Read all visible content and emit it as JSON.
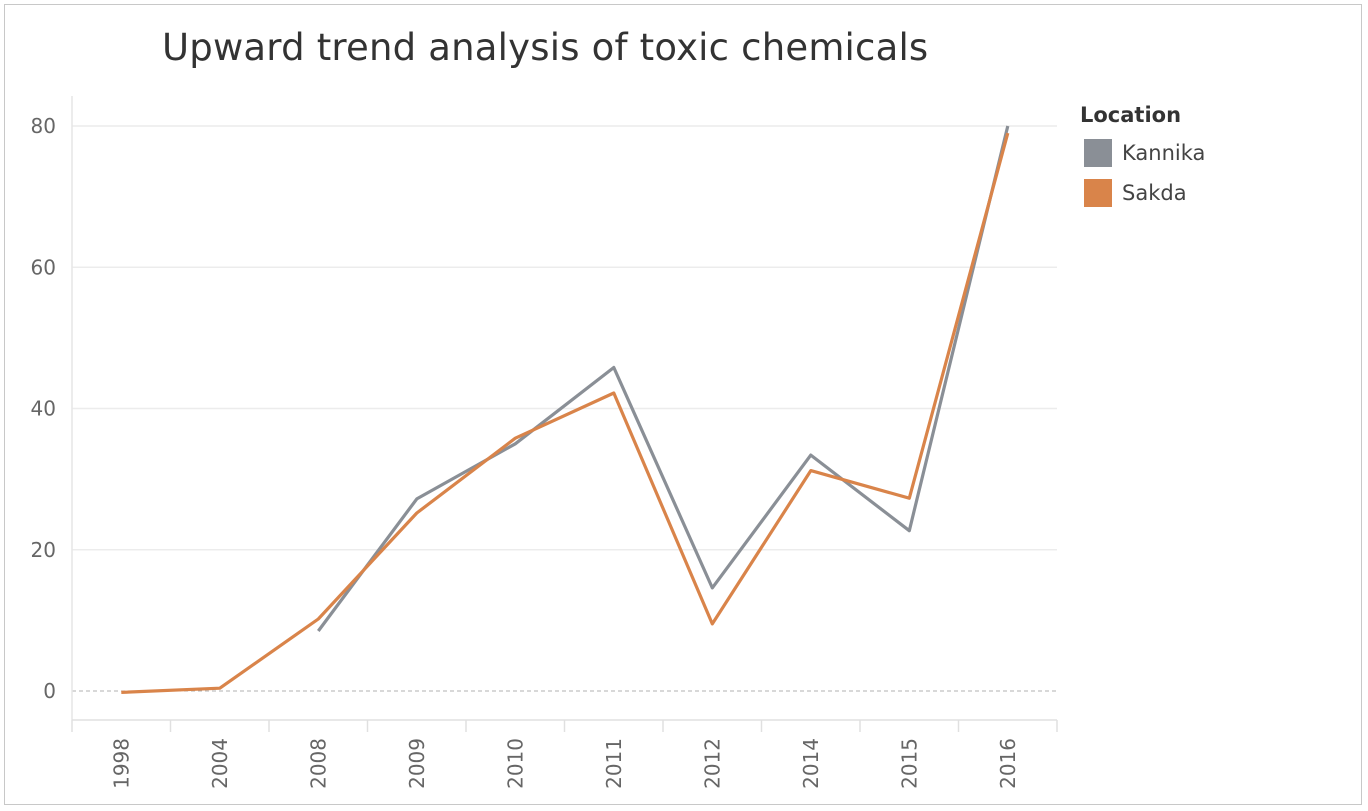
{
  "chart_data": {
    "type": "line",
    "title": "Upward trend analysis of toxic chemicals",
    "x": [
      "1998",
      "2004",
      "2008",
      "2009",
      "2010",
      "2011",
      "2012",
      "2014",
      "2015",
      "2016"
    ],
    "ylim": [
      -4,
      84
    ],
    "yticks": [
      0,
      20,
      40,
      60,
      80
    ],
    "grid": true,
    "legend_title": "Location",
    "legend_position": "right",
    "series": [
      {
        "name": "Kannika",
        "color": "#8a8f96",
        "values": [
          null,
          null,
          8.5,
          27.2,
          35.0,
          45.8,
          14.6,
          33.4,
          22.7,
          80.0
        ]
      },
      {
        "name": "Sakda",
        "color": "#d9844a",
        "values": [
          -0.2,
          0.4,
          10.2,
          25.2,
          35.8,
          42.2,
          9.5,
          31.2,
          27.3,
          79.0
        ]
      }
    ]
  }
}
